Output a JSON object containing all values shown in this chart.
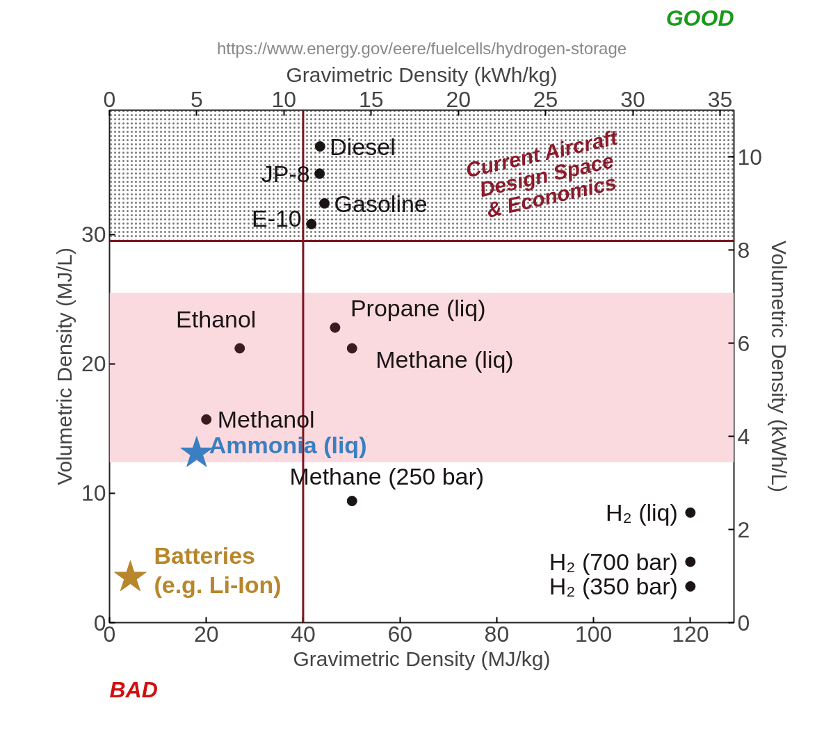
{
  "chart_data": {
    "type": "scatter",
    "xlabel": "Gravimetric Density (MJ/kg)",
    "ylabel": "Volumetric Density (MJ/L)",
    "x2label": "Gravimetric Density (kWh/kg)",
    "y2label": "Volumetric Density (kWh/L)",
    "xlim": [
      0,
      129
    ],
    "xticks": [
      0,
      20,
      40,
      60,
      80,
      100,
      120
    ],
    "ylim": [
      0,
      39.6
    ],
    "yticks": [
      0,
      10,
      20,
      30
    ],
    "x2lim": [
      0,
      35.8
    ],
    "x2ticks": [
      0,
      5,
      10,
      15,
      20,
      25,
      30,
      35
    ],
    "y2lim": [
      0,
      11.0
    ],
    "y2ticks": [
      0,
      2,
      4,
      6,
      8,
      10
    ],
    "grid": false,
    "series": [
      {
        "name": "Diesel",
        "color": "#1a1414",
        "marker": "circle",
        "x": [
          43.5
        ],
        "values": [
          36.8
        ]
      },
      {
        "name": "JP-8",
        "color": "#1a1414",
        "marker": "circle",
        "x": [
          43.4
        ],
        "values": [
          34.7
        ]
      },
      {
        "name": "Gasoline",
        "color": "#1a1414",
        "marker": "circle",
        "x": [
          44.4
        ],
        "values": [
          32.4
        ]
      },
      {
        "name": "E-10",
        "color": "#1a1414",
        "marker": "circle",
        "x": [
          41.7
        ],
        "values": [
          30.8
        ]
      },
      {
        "name": "Propane (liq)",
        "color": "#3a1c1c",
        "marker": "circle",
        "x": [
          46.6
        ],
        "values": [
          22.8
        ]
      },
      {
        "name": "Ethanol",
        "color": "#3a1c1c",
        "marker": "circle",
        "x": [
          26.9
        ],
        "values": [
          21.2
        ]
      },
      {
        "name": "Methane (liq)",
        "color": "#3a1c1c",
        "marker": "circle",
        "x": [
          50.1
        ],
        "values": [
          21.2
        ]
      },
      {
        "name": "Methanol",
        "color": "#3a1c1c",
        "marker": "circle",
        "x": [
          20.0
        ],
        "values": [
          15.7
        ]
      },
      {
        "name": "Ammonia (liq)",
        "color": "#3a7fc1",
        "marker": "star",
        "x": [
          18.0
        ],
        "values": [
          13.1
        ]
      },
      {
        "name": "Methane (250 bar)",
        "color": "#1a1414",
        "marker": "circle",
        "x": [
          50.1
        ],
        "values": [
          9.4
        ]
      },
      {
        "name": "H₂ (liq)",
        "color": "#1a1414",
        "marker": "circle",
        "x": [
          120
        ],
        "values": [
          8.5
        ]
      },
      {
        "name": "H₂ (700 bar)",
        "color": "#1a1414",
        "marker": "circle",
        "x": [
          120
        ],
        "values": [
          4.7
        ]
      },
      {
        "name": "H₂ (350 bar)",
        "color": "#1a1414",
        "marker": "circle",
        "x": [
          120
        ],
        "values": [
          2.8
        ]
      },
      {
        "name": "Batteries\n(e.g. Li-Ion)",
        "color": "#b8862b",
        "marker": "star",
        "x": [
          4.3
        ],
        "values": [
          3.5
        ]
      }
    ],
    "bands": [
      {
        "axis": "y",
        "from": 12.4,
        "to": 25.5,
        "color": "#f9d6dc",
        "label": null
      },
      {
        "axis": "y",
        "from": 29.6,
        "to": 39.6,
        "color": "#555555",
        "label": "Current Aircraft\nDesign Space\n& Economics"
      }
    ],
    "ref_lines": [
      {
        "axis": "y",
        "value": 29.5,
        "color": "#7a1520",
        "line_style": "solid"
      },
      {
        "axis": "x",
        "value": 40,
        "color": "#7a1520",
        "line_style": "solid"
      }
    ],
    "annotations": [
      "https://www.energy.gov/eere/fuelcells/hydrogen-storage",
      "GOOD",
      "BAD"
    ]
  }
}
